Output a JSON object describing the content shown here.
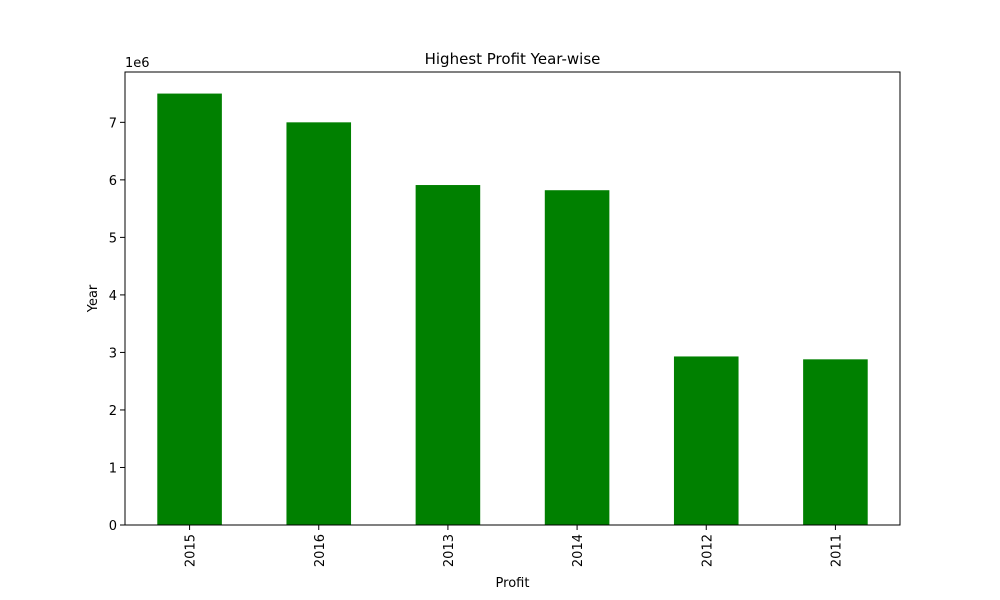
{
  "chart_data": {
    "type": "bar",
    "title": "Highest Profit Year-wise",
    "xlabel": "Profit",
    "ylabel": "Year",
    "offset_label": "1e6",
    "scale_multiplier": 1000000,
    "categories": [
      "2015",
      "2016",
      "2013",
      "2014",
      "2012",
      "2011"
    ],
    "values": [
      7500000,
      7000000,
      5910000,
      5820000,
      2930000,
      2880000
    ],
    "ylim": [
      0,
      7875000
    ],
    "yticks": [
      0,
      1000000,
      2000000,
      3000000,
      4000000,
      5000000,
      6000000,
      7000000
    ],
    "ytick_labels": [
      "0",
      "1",
      "2",
      "3",
      "4",
      "5",
      "6",
      "7"
    ],
    "bar_color": "#008000",
    "grid": false,
    "legend": "none"
  }
}
